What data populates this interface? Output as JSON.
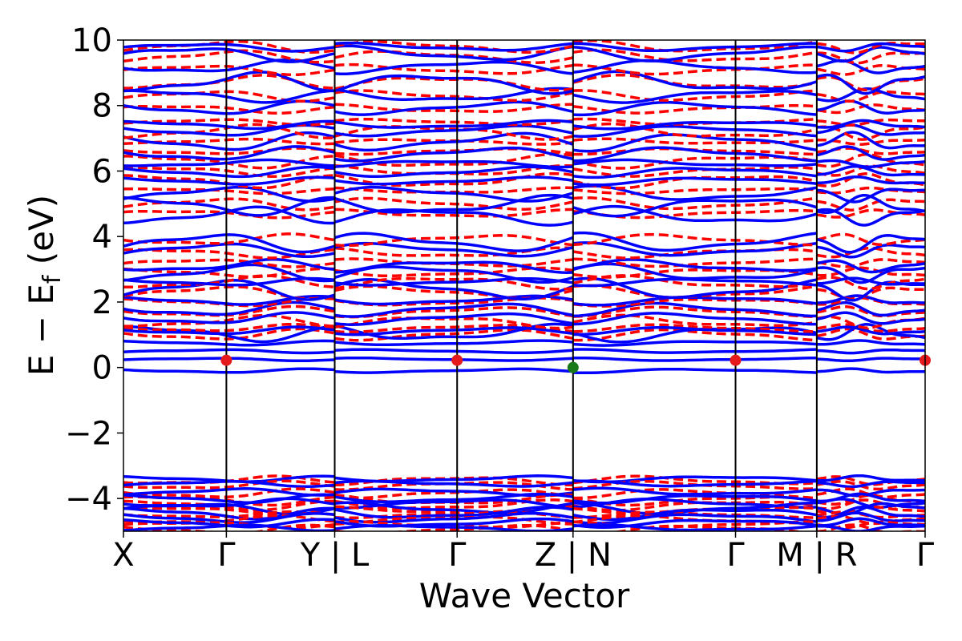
{
  "chart_data": {
    "type": "line",
    "title": "",
    "xlabel": "Wave Vector",
    "ylabel": "E − E",
    "ylabel_sub": "f",
    "ylabel_unit": " (eV)",
    "ylim": [
      -5,
      10
    ],
    "yticks": [
      -4,
      -2,
      0,
      2,
      4,
      6,
      8,
      10
    ],
    "ytick_labels": [
      "−4",
      "−2",
      "0",
      "2",
      "4",
      "6",
      "8",
      "10"
    ],
    "xlim": [
      0,
      7.4
    ],
    "kpoint_positions": [
      0,
      0.95,
      1.95,
      3.08,
      4.15,
      5.65,
      6.4,
      7.4
    ],
    "kpoint_labels": [
      "X",
      "Γ",
      "Y | L",
      "Γ",
      "Z | N",
      "Γ",
      "M | R",
      "Γ"
    ],
    "segments": [
      [
        0,
        1.95
      ],
      [
        1.95,
        4.15
      ],
      [
        4.15,
        6.4
      ],
      [
        6.4,
        7.4
      ]
    ],
    "series": [
      {
        "style": "solid",
        "color": "#0000ff"
      },
      {
        "style": "dashed",
        "color": "#ff0000"
      }
    ],
    "valence_levels": [
      -3.45,
      -3.6,
      -3.85,
      -4.05,
      -4.2,
      -4.35,
      -4.5,
      -4.65,
      -4.8,
      -4.95
    ],
    "low_conduction_levels": [
      -0.1,
      0.25,
      0.5,
      0.75
    ],
    "conduction_levels": [
      1.0,
      1.2,
      1.4,
      1.7,
      2.0,
      2.3,
      2.6,
      2.9,
      3.2,
      3.5,
      3.9,
      4.7,
      5.0,
      5.4,
      5.7,
      6.0,
      6.3,
      6.6,
      6.9,
      7.2,
      7.5,
      7.9,
      8.3,
      8.7,
      9.1,
      9.5,
      9.8
    ],
    "markers": [
      {
        "x": 0.95,
        "y": 0.22,
        "color": "#e41a1c"
      },
      {
        "x": 3.08,
        "y": 0.22,
        "color": "#e41a1c"
      },
      {
        "x": 5.65,
        "y": 0.22,
        "color": "#e41a1c"
      },
      {
        "x": 7.4,
        "y": 0.22,
        "color": "#e41a1c"
      },
      {
        "x": 4.15,
        "y": 0.0,
        "color": "#1a7a1a"
      }
    ]
  }
}
